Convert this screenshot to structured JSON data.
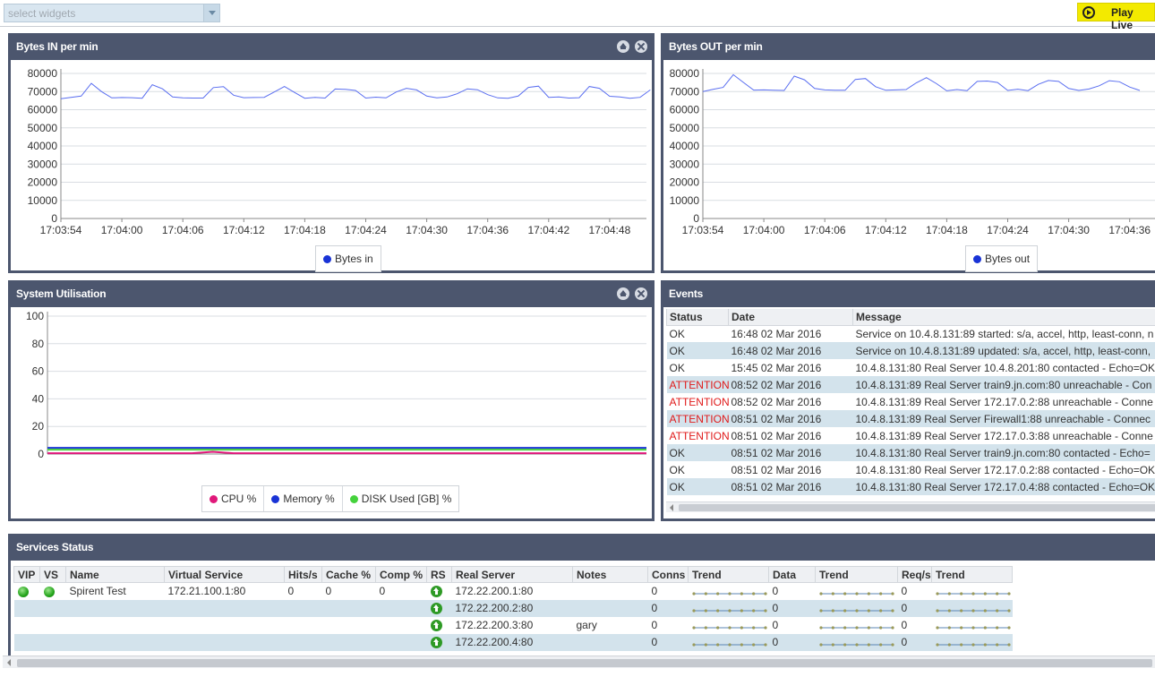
{
  "topbar": {
    "select_placeholder": "select widgets",
    "play_live_label": "Play Live"
  },
  "colors": {
    "panel_header": "#4c566e",
    "line_series": "#5a6ef0",
    "cpu": "#e0187a",
    "memory": "#1933d6",
    "disk": "#45d23c",
    "attention": "#e01a1a",
    "row_alt": "#d3e3ec",
    "play_live": "#f3ea00"
  },
  "icons": {
    "play_live": "play-circle-icon",
    "collapse": "chevron-up-icon",
    "close": "close-icon",
    "vip_status": "green-led-icon",
    "rs_status": "arrow-up-icon"
  },
  "bytes_in": {
    "title": "Bytes IN per min",
    "legend": [
      "Bytes in"
    ]
  },
  "bytes_out": {
    "title": "Bytes OUT per min",
    "legend": [
      "Bytes out"
    ]
  },
  "system": {
    "title": "System Utilisation",
    "legend": [
      "CPU %",
      "Memory %",
      "DISK Used [GB] %"
    ]
  },
  "chart_data": [
    {
      "type": "line",
      "title": "Bytes IN per min",
      "x_ticks": [
        "17:03:54",
        "17:04:00",
        "17:04:06",
        "17:04:12",
        "17:04:18",
        "17:04:24",
        "17:04:30",
        "17:04:36",
        "17:04:42",
        "17:04:48"
      ],
      "x_range": [
        "17:03:54",
        "17:04:53"
      ],
      "y_ticks": [
        0,
        10000,
        20000,
        30000,
        40000,
        50000,
        60000,
        70000,
        80000
      ],
      "ylim": [
        0,
        80000
      ],
      "grid": true,
      "legend_placement": "bottom-center",
      "series": [
        {
          "name": "Bytes in",
          "color": "#5a6ef0",
          "values": [
            66000,
            66800,
            67500,
            74500,
            70000,
            66500,
            66700,
            66600,
            66300,
            73800,
            71500,
            67000,
            66500,
            66400,
            66400,
            72200,
            72700,
            68000,
            66600,
            66700,
            66800,
            69800,
            72800,
            69500,
            66300,
            66800,
            66400,
            71400,
            71200,
            70600,
            66400,
            66900,
            66500,
            69800,
            71800,
            70900,
            67500,
            66500,
            67000,
            68800,
            71500,
            71000,
            68300,
            66500,
            66300,
            67500,
            72300,
            73000,
            66800,
            67000,
            66400,
            66600,
            72800,
            71800,
            67400,
            67000,
            66300,
            66800,
            70900
          ]
        }
      ]
    },
    {
      "type": "line",
      "title": "Bytes OUT per min",
      "x_ticks": [
        "17:03:54",
        "17:04:00",
        "17:04:06",
        "17:04:12",
        "17:04:18",
        "17:04:24",
        "17:04:30",
        "17:04:36"
      ],
      "x_range": [
        "17:03:54",
        "17:04:40"
      ],
      "y_ticks": [
        0,
        10000,
        20000,
        30000,
        40000,
        50000,
        60000,
        70000,
        80000
      ],
      "ylim": [
        0,
        80000
      ],
      "grid": true,
      "legend_placement": "bottom-center",
      "series": [
        {
          "name": "Bytes out",
          "color": "#5a6ef0",
          "values": [
            70000,
            71200,
            72300,
            79300,
            75000,
            70800,
            70900,
            70700,
            70600,
            78500,
            76500,
            71700,
            70900,
            70700,
            70700,
            76700,
            77200,
            72700,
            70700,
            70900,
            71100,
            74800,
            77700,
            74300,
            70400,
            71100,
            70500,
            75600,
            75800,
            75000,
            70600,
            71300,
            70500,
            74000,
            76100,
            75600,
            71700,
            70600,
            71400,
            73200,
            76000,
            75400,
            72500,
            70600
          ]
        }
      ]
    },
    {
      "type": "line",
      "title": "System Utilisation",
      "y_ticks": [
        0,
        20,
        40,
        60,
        80,
        100
      ],
      "ylim": [
        0,
        100
      ],
      "grid": true,
      "legend_placement": "bottom-center",
      "series": [
        {
          "name": "CPU %",
          "color": "#e0187a",
          "values": [
            0.6,
            0.6,
            0.6,
            0.6,
            0.6,
            0.6,
            0.6,
            0.6,
            1.6,
            0.6,
            0.6,
            0.6,
            0.6,
            0.6,
            0.6,
            0.6,
            0.6,
            0.6,
            0.6,
            0.6,
            0.6,
            0.6,
            0.6,
            0.6,
            0.6,
            0.6,
            0.6,
            0.6,
            0.6,
            0.6
          ]
        },
        {
          "name": "Memory %",
          "color": "#1933d6",
          "values": [
            4.5,
            4.5,
            4.5,
            4.5,
            4.5,
            4.5,
            4.5,
            4.5,
            4.5,
            4.5,
            4.5,
            4.5,
            4.5,
            4.5,
            4.5,
            4.5,
            4.5,
            4.5,
            4.5,
            4.5,
            4.5,
            4.5,
            4.5,
            4.5,
            4.5,
            4.5,
            4.5,
            4.5,
            4.5,
            4.5
          ]
        },
        {
          "name": "DISK Used [GB] %",
          "color": "#45d23c",
          "values": [
            3.2,
            3.2,
            3.2,
            3.2,
            3.2,
            3.2,
            3.2,
            3.2,
            3.2,
            3.2,
            3.2,
            3.2,
            3.2,
            3.2,
            3.2,
            3.2,
            3.2,
            3.2,
            3.2,
            3.2,
            3.2,
            3.2,
            3.2,
            3.2,
            3.2,
            3.2,
            3.2,
            3.2,
            3.2,
            3.2
          ]
        }
      ]
    }
  ],
  "events": {
    "title": "Events",
    "columns": [
      "Status",
      "Date",
      "Message"
    ],
    "rows": [
      {
        "status": "OK",
        "date": "16:48 02 Mar 2016",
        "message": "Service on 10.4.8.131:89 started: s/a, accel, http, least-conn, n"
      },
      {
        "status": "OK",
        "date": "16:48 02 Mar 2016",
        "message": "Service on 10.4.8.131:89 updated: s/a, accel, http, least-conn,"
      },
      {
        "status": "OK",
        "date": "15:45 02 Mar 2016",
        "message": "10.4.8.131:80 Real Server 10.4.8.201:80 contacted - Echo=OK"
      },
      {
        "status": "ATTENTION",
        "date": "08:52 02 Mar 2016",
        "message": "10.4.8.131:89 Real Server train9.jn.com:80 unreachable - Con"
      },
      {
        "status": "ATTENTION",
        "date": "08:52 02 Mar 2016",
        "message": "10.4.8.131:89 Real Server 172.17.0.2:88 unreachable - Conne"
      },
      {
        "status": "ATTENTION",
        "date": "08:51 02 Mar 2016",
        "message": "10.4.8.131:89 Real Server Firewall1:88 unreachable - Connec"
      },
      {
        "status": "ATTENTION",
        "date": "08:51 02 Mar 2016",
        "message": "10.4.8.131:89 Real Server 172.17.0.3:88 unreachable - Conne"
      },
      {
        "status": "OK",
        "date": "08:51 02 Mar 2016",
        "message": "10.4.8.131:80 Real Server train9.jn.com:80 contacted - Echo="
      },
      {
        "status": "OK",
        "date": "08:51 02 Mar 2016",
        "message": "10.4.8.131:80 Real Server 172.17.0.2:88 contacted - Echo=OK"
      },
      {
        "status": "OK",
        "date": "08:51 02 Mar 2016",
        "message": "10.4.8.131:80 Real Server 172.17.0.4:88 contacted - Echo=OK"
      }
    ]
  },
  "services": {
    "title": "Services Status",
    "columns": [
      "VIP",
      "VS",
      "Name",
      "Virtual Service",
      "Hits/s",
      "Cache %",
      "Comp %",
      "RS",
      "Real Server",
      "Notes",
      "Conns",
      "Trend",
      "Data",
      "Trend",
      "Req/s",
      "Trend"
    ],
    "rows": [
      {
        "vip": true,
        "vs": true,
        "name": "Spirent Test",
        "virtual_service": "172.21.100.1:80",
        "hits": "0",
        "cache": "0",
        "comp": "0",
        "real_server": "172.22.200.1:80",
        "notes": "",
        "conns": "0",
        "data": "0",
        "reqs": "0"
      },
      {
        "vip": false,
        "vs": false,
        "name": "",
        "virtual_service": "",
        "hits": "",
        "cache": "",
        "comp": "",
        "real_server": "172.22.200.2:80",
        "notes": "",
        "conns": "0",
        "data": "0",
        "reqs": "0"
      },
      {
        "vip": false,
        "vs": false,
        "name": "",
        "virtual_service": "",
        "hits": "",
        "cache": "",
        "comp": "",
        "real_server": "172.22.200.3:80",
        "notes": "gary",
        "conns": "0",
        "data": "0",
        "reqs": "0"
      },
      {
        "vip": false,
        "vs": false,
        "name": "",
        "virtual_service": "",
        "hits": "",
        "cache": "",
        "comp": "",
        "real_server": "172.22.200.4:80",
        "notes": "",
        "conns": "0",
        "data": "0",
        "reqs": "0"
      }
    ]
  }
}
